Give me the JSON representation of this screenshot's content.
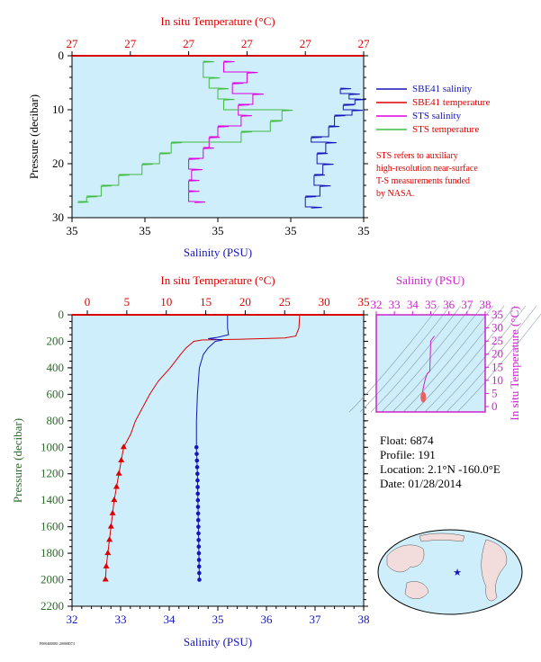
{
  "chart_data": [
    {
      "type": "line",
      "top_title": "In situ Temperature (°C)",
      "top_ticks": [
        "27",
        "27",
        "27",
        "27",
        "27",
        "27"
      ],
      "xlabel": "Salinity (PSU)",
      "bottom_ticks": [
        "35",
        "35",
        "35",
        "35",
        "35"
      ],
      "ylabel": "Pressure (decibar)",
      "y_ticks": [
        "0",
        "10",
        "20",
        "30"
      ],
      "ylim": [
        30,
        0
      ],
      "legend": [
        {
          "name": "SBE41 salinity",
          "color": "#1515b8"
        },
        {
          "name": "SBE41 temperature",
          "color": "#dd0000"
        },
        {
          "name": "STS salinity",
          "color": "#dd00dd"
        },
        {
          "name": "STS temperature",
          "color": "#44bb44"
        }
      ],
      "note": [
        "STS refers to auxiliary",
        "high-resolution near-surface",
        "T-S measurements funded",
        "by NASA."
      ],
      "series": [
        {
          "name": "SBE41 salinity",
          "pressure": [
            6,
            7,
            8,
            9,
            10,
            11,
            13,
            15,
            16,
            18,
            20,
            22,
            24,
            26,
            28
          ],
          "position_frac": [
            0.92,
            0.95,
            0.97,
            0.93,
            0.96,
            0.9,
            0.88,
            0.82,
            0.87,
            0.84,
            0.86,
            0.83,
            0.85,
            0.8,
            0.82
          ]
        },
        {
          "name": "STS salinity",
          "pressure": [
            1,
            3,
            5,
            7,
            9,
            11,
            13,
            15,
            17,
            19,
            21,
            23,
            25,
            27
          ],
          "position_frac": [
            0.52,
            0.6,
            0.55,
            0.62,
            0.57,
            0.58,
            0.5,
            0.47,
            0.45,
            0.4,
            0.41,
            0.4,
            0.4,
            0.42
          ]
        },
        {
          "name": "STS temperature",
          "pressure": [
            1,
            4,
            6,
            8,
            10,
            12,
            14,
            16,
            18,
            20,
            22,
            24,
            26,
            27
          ],
          "position_frac": [
            0.45,
            0.47,
            0.5,
            0.52,
            0.72,
            0.68,
            0.58,
            0.34,
            0.3,
            0.24,
            0.16,
            0.1,
            0.05,
            0.02
          ]
        }
      ]
    },
    {
      "type": "line",
      "top_title": "In situ Temperature (°C)",
      "top_ticks": [
        "0",
        "5",
        "10",
        "15",
        "20",
        "25",
        "30",
        "35"
      ],
      "xlabel": "Salinity (PSU)",
      "bottom_ticks": [
        "32",
        "33",
        "34",
        "35",
        "36",
        "37",
        "38"
      ],
      "ylabel": "Pressure (decibar)",
      "y_ticks": [
        "0",
        "200",
        "400",
        "600",
        "800",
        "1000",
        "1200",
        "1400",
        "1600",
        "1800",
        "2000",
        "2200"
      ],
      "ylim": [
        2200,
        0
      ],
      "temperature": {
        "pressure": [
          0,
          100,
          160,
          175,
          185,
          190,
          200,
          250,
          300,
          400,
          500,
          600,
          700,
          800,
          900,
          1000,
          1100,
          1200,
          1300,
          1400,
          1500,
          1600,
          1700,
          1800,
          1900,
          2000
        ],
        "values": [
          26.9,
          26.8,
          26.4,
          25.0,
          19.0,
          14.5,
          13.5,
          12.5,
          11.8,
          10.5,
          9.0,
          7.9,
          7.0,
          6.1,
          5.5,
          4.6,
          4.3,
          4.0,
          3.7,
          3.4,
          3.2,
          3.0,
          2.8,
          2.6,
          2.4,
          2.3
        ]
      },
      "salinity": {
        "pressure": [
          0,
          100,
          150,
          170,
          180,
          190,
          200,
          250,
          300,
          400,
          600,
          800,
          1000,
          1200,
          1400,
          1600,
          1800,
          2000
        ],
        "values": [
          35.2,
          35.2,
          35.22,
          35.0,
          34.8,
          35.1,
          34.95,
          34.8,
          34.7,
          34.62,
          34.58,
          34.56,
          34.56,
          34.58,
          34.59,
          34.6,
          34.61,
          34.62
        ]
      }
    },
    {
      "type": "line",
      "title": "Salinity (PSU)",
      "top_ticks": [
        "32",
        "33",
        "34",
        "35",
        "36",
        "37",
        "38"
      ],
      "ylabel": "In situ Temperature (°C)",
      "right_ticks": [
        "0",
        "5",
        "10",
        "15",
        "20",
        "25",
        "30",
        "35"
      ],
      "ts_curve": {
        "salinity": [
          34.62,
          34.6,
          34.57,
          34.56,
          34.7,
          34.8,
          34.95,
          35.0,
          35.2
        ],
        "temperature": [
          2.3,
          3.0,
          4.6,
          6.1,
          10.5,
          12.5,
          13.5,
          25.0,
          26.9
        ]
      }
    }
  ],
  "info": {
    "float": "Float: 6874",
    "profile": "Profile: 191",
    "location": "Location: 2.1°N -160.0°E",
    "date": "Date: 01/28/2014"
  },
  "footer_id": "P0004000R1 20000D74"
}
